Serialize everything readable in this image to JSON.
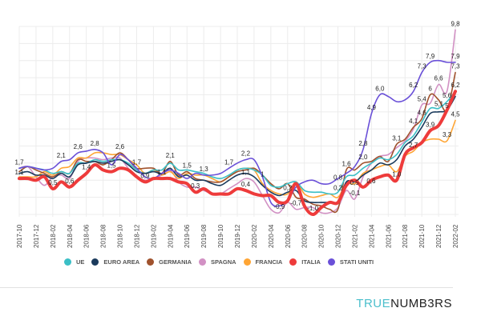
{
  "chart_data": {
    "type": "line",
    "title": "",
    "xlabel": "",
    "ylabel": "",
    "ylim": [
      -1,
      10
    ],
    "grid": true,
    "legend_position": "bottom",
    "x": [
      "2017-10",
      "2017-11",
      "2017-12",
      "2018-01",
      "2018-02",
      "2018-03",
      "2018-04",
      "2018-05",
      "2018-06",
      "2018-07",
      "2018-08",
      "2018-09",
      "2018-10",
      "2018-11",
      "2018-12",
      "2019-01",
      "2019-02",
      "2019-03",
      "2019-04",
      "2019-05",
      "2019-06",
      "2019-07",
      "2019-08",
      "2019-09",
      "2019-10",
      "2019-11",
      "2019-12",
      "2020-01",
      "2020-02",
      "2020-03",
      "2020-04",
      "2020-05",
      "2020-06",
      "2020-07",
      "2020-08",
      "2020-09",
      "2020-10",
      "2020-11",
      "2020-12",
      "2021-01",
      "2021-02",
      "2021-03",
      "2021-04",
      "2021-05",
      "2021-06",
      "2021-07",
      "2021-08",
      "2021-09",
      "2021-10",
      "2021-11",
      "2021-12",
      "2022-01",
      "2022-02"
    ],
    "series": [
      {
        "name": "UE",
        "color": "#3bbfc6",
        "values": [
          1.7,
          1.8,
          1.7,
          1.6,
          1.4,
          1.5,
          1.4,
          2.0,
          2.0,
          2.2,
          2.1,
          2.2,
          2.2,
          2.0,
          1.6,
          1.4,
          1.6,
          1.6,
          2.0,
          1.6,
          1.6,
          1.5,
          1.4,
          1.2,
          1.1,
          1.3,
          1.6,
          1.7,
          1.6,
          1.3,
          0.7,
          0.6,
          0.8,
          0.9,
          0.4,
          0.3,
          0.3,
          0.2,
          0.3,
          1.2,
          1.3,
          1.7,
          2.0,
          2.3,
          2.2,
          2.5,
          3.2,
          3.6,
          4.4,
          5.2,
          5.2,
          5.6,
          6.2
        ]
      },
      {
        "name": "EURO AREA",
        "color": "#1a3a5c",
        "values": [
          1.4,
          1.5,
          1.3,
          1.3,
          1.1,
          1.4,
          1.2,
          1.9,
          2.0,
          2.1,
          2.0,
          2.1,
          2.2,
          1.9,
          1.5,
          1.4,
          1.5,
          1.4,
          1.7,
          1.2,
          1.3,
          1.0,
          1.0,
          0.8,
          0.7,
          1.0,
          1.3,
          1.4,
          1.2,
          0.7,
          0.3,
          0.1,
          0.3,
          0.4,
          -0.2,
          -0.3,
          -0.3,
          -0.3,
          -0.3,
          0.9,
          0.9,
          1.3,
          1.6,
          2.0,
          1.9,
          2.2,
          3.0,
          3.4,
          4.1,
          4.9,
          5.0,
          5.1,
          5.9
        ]
      },
      {
        "name": "GERMANIA",
        "color": "#a0522d",
        "values": [
          1.5,
          1.8,
          1.6,
          1.4,
          1.2,
          1.5,
          1.4,
          2.2,
          2.1,
          2.1,
          1.9,
          2.2,
          2.6,
          2.2,
          1.7,
          1.7,
          1.7,
          1.4,
          2.1,
          1.3,
          1.5,
          1.1,
          1.0,
          0.9,
          0.9,
          1.2,
          1.5,
          1.6,
          1.7,
          1.3,
          0.8,
          0.5,
          0.8,
          0.0,
          -0.1,
          -0.4,
          -0.5,
          -0.7,
          -0.7,
          1.6,
          1.6,
          2.0,
          2.1,
          2.4,
          2.1,
          3.1,
          3.4,
          4.1,
          4.6,
          6.0,
          5.7,
          5.1,
          7.3
        ]
      },
      {
        "name": "SPAGNA",
        "color": "#d291c4",
        "values": [
          1.7,
          1.8,
          1.2,
          0.7,
          1.2,
          1.3,
          1.1,
          2.1,
          2.3,
          2.3,
          2.2,
          2.3,
          2.3,
          1.7,
          1.2,
          1.0,
          1.1,
          1.3,
          1.6,
          0.9,
          0.6,
          0.6,
          0.4,
          0.2,
          0.2,
          0.5,
          0.8,
          1.1,
          0.9,
          0.1,
          -0.7,
          -0.9,
          -0.3,
          -0.7,
          -0.6,
          -0.6,
          -0.9,
          -0.9,
          -0.6,
          0.4,
          -0.1,
          1.2,
          2.0,
          2.4,
          2.5,
          2.9,
          3.3,
          4.0,
          5.4,
          5.5,
          6.6,
          6.2,
          9.8
        ]
      },
      {
        "name": "FRANCIA",
        "color": "#ffa534",
        "values": [
          1.2,
          1.2,
          1.2,
          1.5,
          1.3,
          1.7,
          1.8,
          2.3,
          2.3,
          2.6,
          2.6,
          2.5,
          2.5,
          2.2,
          1.9,
          1.4,
          1.6,
          1.3,
          1.5,
          1.1,
          1.4,
          1.3,
          1.3,
          1.1,
          0.9,
          1.2,
          1.6,
          1.7,
          1.6,
          0.8,
          0.4,
          0.2,
          0.2,
          0.9,
          0.2,
          0.0,
          0.1,
          0.2,
          0.0,
          0.8,
          0.8,
          1.4,
          1.6,
          1.8,
          1.9,
          1.5,
          2.4,
          2.7,
          3.2,
          3.4,
          3.4,
          3.3,
          4.5
        ]
      },
      {
        "name": "ITALIA",
        "color": "#ee3b3b",
        "values": [
          1.1,
          1.1,
          1.0,
          1.2,
          0.5,
          0.9,
          0.6,
          1.0,
          1.4,
          1.9,
          1.6,
          1.5,
          1.7,
          1.6,
          1.2,
          0.9,
          1.1,
          1.1,
          1.1,
          0.9,
          0.8,
          0.3,
          0.5,
          0.2,
          0.2,
          0.2,
          0.5,
          0.4,
          0.2,
          0.1,
          0.1,
          -0.3,
          -0.2,
          0.8,
          -0.5,
          -1.0,
          -0.6,
          -0.3,
          -0.3,
          0.7,
          1.0,
          0.6,
          1.0,
          1.2,
          1.3,
          1.0,
          2.5,
          2.9,
          3.2,
          3.9,
          4.2,
          5.1,
          6.2
        ]
      },
      {
        "name": "STATI UNITI",
        "color": "#6a50d8",
        "values": [
          1.7,
          1.8,
          1.7,
          1.6,
          1.7,
          2.1,
          2.2,
          2.6,
          2.7,
          2.8,
          2.6,
          1.9,
          2.5,
          2.2,
          1.7,
          1.2,
          1.1,
          1.4,
          1.6,
          1.4,
          1.1,
          1.4,
          1.3,
          1.3,
          1.4,
          1.7,
          2.0,
          2.2,
          2.2,
          1.2,
          -0.3,
          -0.5,
          -0.2,
          0.6,
          0.9,
          1.0,
          0.8,
          0.8,
          1.1,
          1.4,
          1.8,
          2.8,
          4.9,
          6.0,
          5.9,
          5.6,
          5.7,
          6.2,
          7.3,
          7.9,
          8.0,
          7.9,
          7.9
        ]
      }
    ],
    "data_labels": [
      {
        "text": "1,7",
        "x": "2017-10"
      },
      {
        "text": "1,1",
        "x": "2017-10"
      },
      {
        "text": "0,5",
        "x": "2018-02"
      },
      {
        "text": "2,1",
        "x": "2018-03"
      },
      {
        "text": "0,6",
        "x": "2018-04"
      },
      {
        "text": "2,6",
        "x": "2018-05"
      },
      {
        "text": "1,4",
        "x": "2018-06"
      },
      {
        "text": "2,8",
        "x": "2018-07"
      },
      {
        "text": "1,5",
        "x": "2018-09"
      },
      {
        "text": "2,6",
        "x": "2018-10"
      },
      {
        "text": "1,7",
        "x": "2018-12"
      },
      {
        "text": "0,9",
        "x": "2019-01"
      },
      {
        "text": "1,1",
        "x": "2019-03"
      },
      {
        "text": "2,1",
        "x": "2019-04"
      },
      {
        "text": "1,5",
        "x": "2019-06"
      },
      {
        "text": "0,3",
        "x": "2019-07"
      },
      {
        "text": "1,3",
        "x": "2019-08"
      },
      {
        "text": "1,7",
        "x": "2019-11"
      },
      {
        "text": "2,2",
        "x": "2020-01"
      },
      {
        "text": "1,1",
        "x": "2020-01"
      },
      {
        "text": "0,4",
        "x": "2020-01"
      },
      {
        "text": "1",
        "x": "2020-03"
      },
      {
        "text": "-0,9",
        "x": "2020-05"
      },
      {
        "text": "0,2",
        "x": "2020-06"
      },
      {
        "text": "-0,7",
        "x": "2020-07"
      },
      {
        "text": "-1,0",
        "x": "2020-09"
      },
      {
        "text": "0,8",
        "x": "2020-12"
      },
      {
        "text": "0,2",
        "x": "2020-12"
      },
      {
        "text": "1,6",
        "x": "2021-01"
      },
      {
        "text": "0,5",
        "x": "2021-01"
      },
      {
        "text": "-0,1",
        "x": "2021-02"
      },
      {
        "text": "2,8",
        "x": "2021-03"
      },
      {
        "text": "2,0",
        "x": "2021-03"
      },
      {
        "text": "0,6",
        "x": "2021-03"
      },
      {
        "text": "4,9",
        "x": "2021-04"
      },
      {
        "text": "6,0",
        "x": "2021-05"
      },
      {
        "text": "3,1",
        "x": "2021-07"
      },
      {
        "text": "1,0",
        "x": "2021-07"
      },
      {
        "text": "6,2",
        "x": "2021-09"
      },
      {
        "text": "4,1",
        "x": "2021-09"
      },
      {
        "text": "2,7",
        "x": "2021-09"
      },
      {
        "text": "7,3",
        "x": "2021-10"
      },
      {
        "text": "5,4",
        "x": "2021-10"
      },
      {
        "text": "4,6",
        "x": "2021-10"
      },
      {
        "text": "7,9",
        "x": "2021-11"
      },
      {
        "text": "6",
        "x": "2021-11"
      },
      {
        "text": "3,9",
        "x": "2021-11"
      },
      {
        "text": "6,6",
        "x": "2021-12"
      },
      {
        "text": "5,6",
        "x": "2022-01"
      },
      {
        "text": "5",
        "x": "2022-01"
      },
      {
        "text": "5,1",
        "x": "2022-01"
      },
      {
        "text": "3,3",
        "x": "2022-01"
      },
      {
        "text": "9,8",
        "x": "2022-02"
      },
      {
        "text": "7,9",
        "x": "2022-02"
      },
      {
        "text": "7,3",
        "x": "2022-02"
      },
      {
        "text": "6,2",
        "x": "2022-02"
      },
      {
        "text": "4,5",
        "x": "2022-02"
      }
    ]
  },
  "legend": [
    {
      "label": "UE",
      "color": "#3bbfc6"
    },
    {
      "label": "EURO AREA",
      "color": "#1a3a5c"
    },
    {
      "label": "GERMANIA",
      "color": "#a0522d"
    },
    {
      "label": "SPAGNA",
      "color": "#d291c4"
    },
    {
      "label": "FRANCIA",
      "color": "#ffa534"
    },
    {
      "label": "ITALIA",
      "color": "#ee3b3b"
    },
    {
      "label": "STATI UNITI",
      "color": "#6a50d8"
    }
  ],
  "logo": {
    "part1": "TRUE",
    "part2": "NUMB3RS"
  }
}
